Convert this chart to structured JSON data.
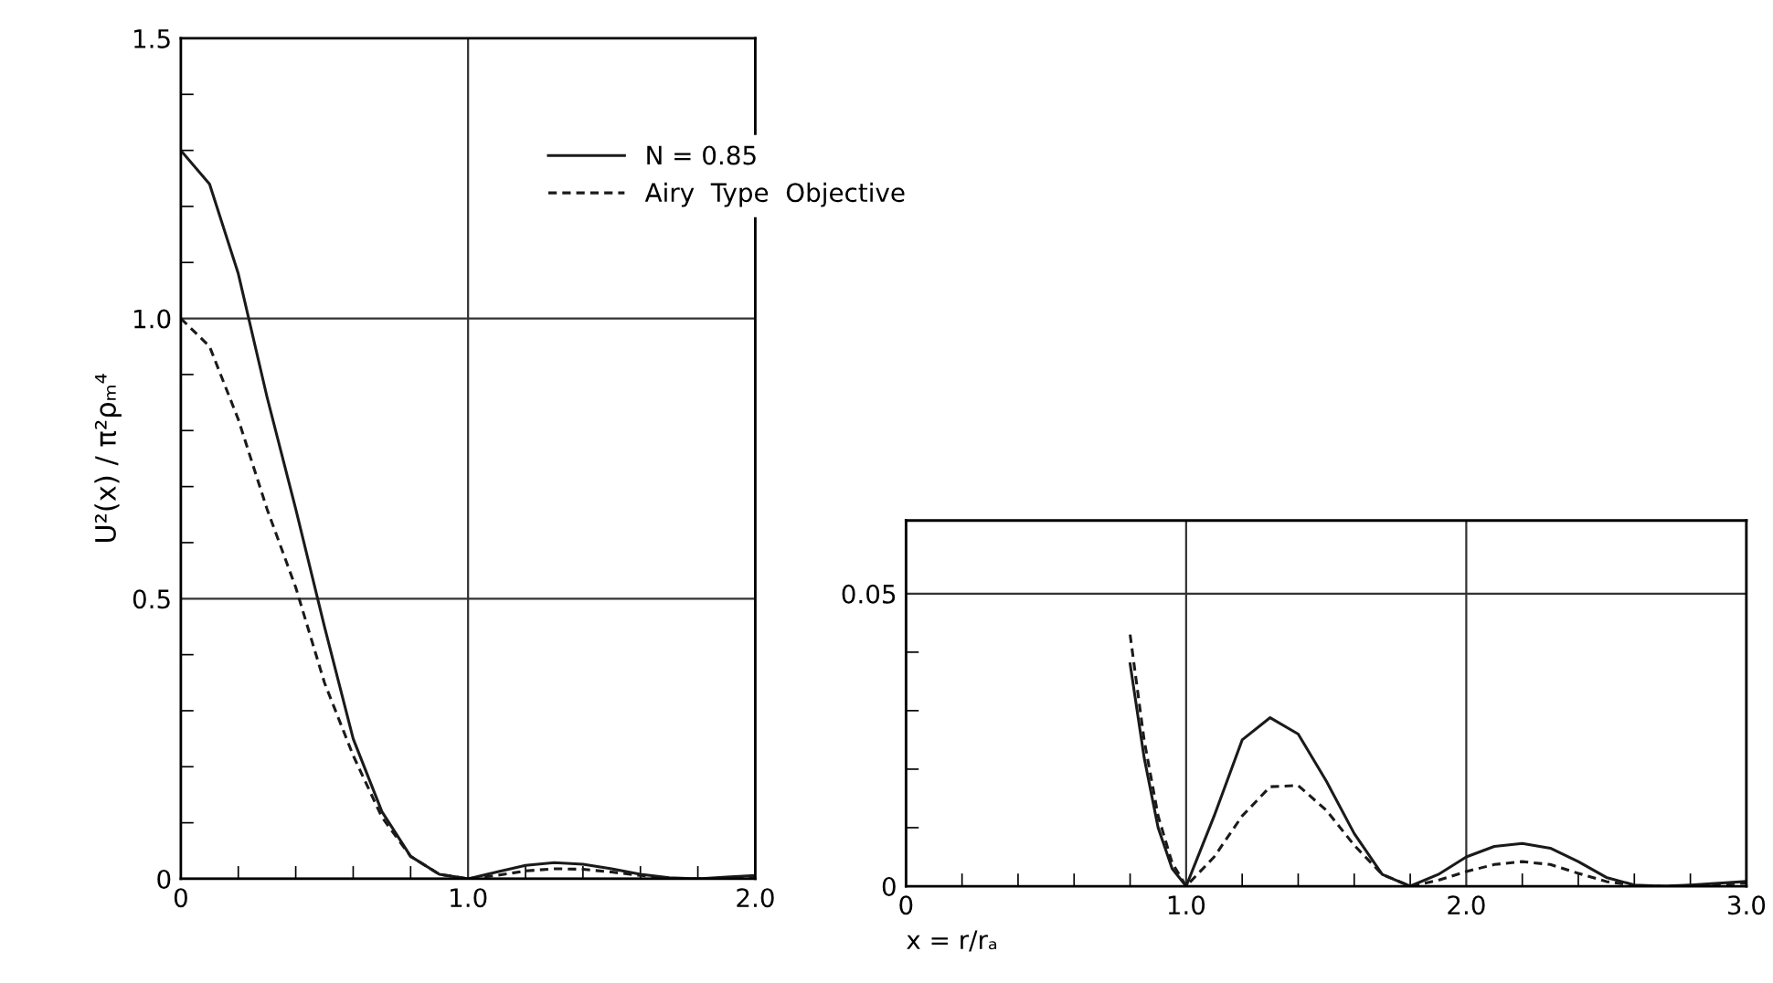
{
  "chart_data": [
    {
      "type": "line",
      "ylabel": "U²(x) / π²ρₘ⁴",
      "xlim": [
        0,
        2.0
      ],
      "ylim": [
        0,
        1.5
      ],
      "xticks": [
        0,
        {
          "value": 0.2,
          "label": null
        },
        {
          "value": 0.4,
          "label": null
        },
        {
          "value": 0.6,
          "label": null
        },
        {
          "value": 0.8,
          "label": null
        },
        {
          "value": 1.0,
          "label": "1.0"
        },
        {
          "value": 1.2,
          "label": null
        },
        {
          "value": 1.4,
          "label": null
        },
        {
          "value": 1.6,
          "label": null
        },
        {
          "value": 1.8,
          "label": null
        },
        {
          "value": 2.0,
          "label": "2.0"
        }
      ],
      "yticks": [
        0,
        {
          "value": 0.1,
          "label": null
        },
        {
          "value": 0.2,
          "label": null
        },
        {
          "value": 0.3,
          "label": null
        },
        {
          "value": 0.4,
          "label": null
        },
        {
          "value": 0.5,
          "label": "0.5"
        },
        {
          "value": 0.6,
          "label": null
        },
        {
          "value": 0.7,
          "label": null
        },
        {
          "value": 0.8,
          "label": null
        },
        {
          "value": 0.9,
          "label": null
        },
        {
          "value": 1.0,
          "label": "1.0"
        },
        {
          "value": 1.1,
          "label": null
        },
        {
          "value": 1.2,
          "label": null
        },
        {
          "value": 1.3,
          "label": null
        },
        {
          "value": 1.4,
          "label": null
        },
        {
          "value": 1.5,
          "label": "1.5"
        }
      ],
      "grid": true,
      "legend": "top right",
      "series": [
        {
          "name": "N = 0.85",
          "color": "#1a1a1a",
          "line_style": "solid",
          "x": [
            0,
            0.1,
            0.2,
            0.3,
            0.4,
            0.5,
            0.6,
            0.7,
            0.8,
            0.9,
            1.0,
            1.1,
            1.2,
            1.3,
            1.4,
            1.5,
            1.6,
            1.7,
            1.8,
            1.9,
            2.0
          ],
          "values": [
            1.3,
            1.24,
            1.08,
            0.86,
            0.66,
            0.45,
            0.25,
            0.12,
            0.04,
            0.008,
            0,
            0.012,
            0.024,
            0.029,
            0.026,
            0.018,
            0.008,
            0.002,
            0,
            0.003,
            0.006
          ]
        },
        {
          "name": "Airy  Type  Objective",
          "color": "#1a1a1a",
          "line_style": "dashed",
          "x": [
            0,
            0.1,
            0.2,
            0.3,
            0.4,
            0.5,
            0.6,
            0.7,
            0.8,
            0.9,
            1.0,
            1.1,
            1.2,
            1.3,
            1.4,
            1.5,
            1.6,
            1.7,
            1.8,
            1.9,
            2.0
          ],
          "values": [
            1.0,
            0.95,
            0.82,
            0.66,
            0.52,
            0.35,
            0.22,
            0.11,
            0.04,
            0.008,
            0,
            0.006,
            0.014,
            0.018,
            0.017,
            0.012,
            0.006,
            0.001,
            0,
            0.001,
            0.0025
          ]
        }
      ]
    },
    {
      "type": "line",
      "xlabel": "x = r/rₐ",
      "xlim": [
        0,
        3.0
      ],
      "ylim": [
        0,
        0.0625
      ],
      "xticks": [
        0,
        {
          "value": 0.2,
          "label": null
        },
        {
          "value": 0.4,
          "label": null
        },
        {
          "value": 0.6,
          "label": null
        },
        {
          "value": 0.8,
          "label": null
        },
        {
          "value": 1.0,
          "label": "1.0"
        },
        {
          "value": 1.2,
          "label": null
        },
        {
          "value": 1.4,
          "label": null
        },
        {
          "value": 1.6,
          "label": null
        },
        {
          "value": 1.8,
          "label": null
        },
        {
          "value": 2.0,
          "label": "2.0"
        },
        {
          "value": 2.2,
          "label": null
        },
        {
          "value": 2.4,
          "label": null
        },
        {
          "value": 2.6,
          "label": null
        },
        {
          "value": 2.8,
          "label": null
        },
        {
          "value": 3.0,
          "label": "3.0"
        }
      ],
      "yticks": [
        0,
        {
          "value": 0.01,
          "label": null
        },
        {
          "value": 0.02,
          "label": null
        },
        {
          "value": 0.03,
          "label": null
        },
        {
          "value": 0.04,
          "label": null
        },
        0.05
      ],
      "grid": true,
      "series": [
        {
          "color": "#1a1a1a",
          "line_style": "solid",
          "x": [
            0.8,
            0.85,
            0.9,
            0.95,
            1.0,
            1.1,
            1.2,
            1.3,
            1.4,
            1.5,
            1.6,
            1.7,
            1.8,
            1.9,
            2.0,
            2.1,
            2.2,
            2.3,
            2.4,
            2.5,
            2.6,
            2.7,
            2.8,
            2.9,
            3.0
          ],
          "values": [
            0.038,
            0.022,
            0.01,
            0.003,
            0,
            0.012,
            0.025,
            0.0288,
            0.026,
            0.018,
            0.009,
            0.002,
            0,
            0.002,
            0.005,
            0.0068,
            0.0073,
            0.0065,
            0.0042,
            0.0015,
            0.0002,
            0,
            0.0002,
            0.0005,
            0.0008
          ]
        },
        {
          "color": "#1a1a1a",
          "line_style": "dashed",
          "x": [
            0.8,
            0.85,
            0.9,
            0.95,
            1.0,
            1.1,
            1.2,
            1.3,
            1.4,
            1.5,
            1.6,
            1.7,
            1.8,
            1.9,
            2.0,
            2.1,
            2.2,
            2.3,
            2.4,
            2.5,
            2.6,
            2.7,
            2.8,
            2.9,
            3.0
          ],
          "values": [
            0.043,
            0.025,
            0.012,
            0.004,
            0,
            0.005,
            0.012,
            0.017,
            0.0172,
            0.013,
            0.007,
            0.002,
            0,
            0.001,
            0.0025,
            0.0037,
            0.0042,
            0.0037,
            0.0022,
            0.0008,
            0.0001,
            0,
            0.0001,
            0.0003,
            0.0005
          ]
        }
      ]
    }
  ]
}
